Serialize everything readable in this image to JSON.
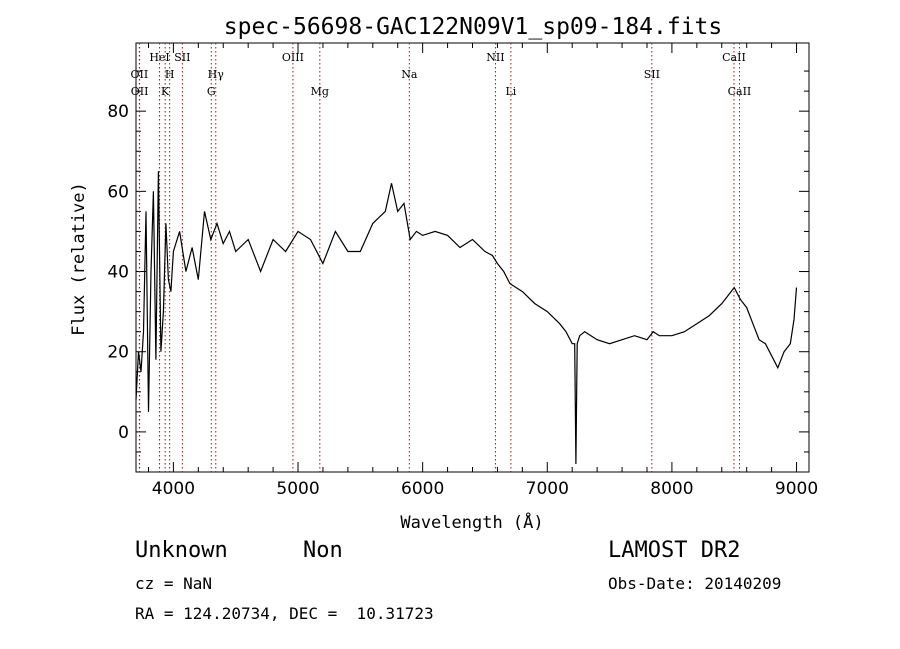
{
  "chart_data": {
    "type": "line",
    "title": "spec-56698-GAC122N09V1_sp09-184.fits",
    "xlabel": "Wavelength (Å)",
    "ylabel": "Flux (relative)",
    "xlim": [
      3700,
      9100
    ],
    "ylim": [
      -10,
      97
    ],
    "xticks": [
      4000,
      5000,
      6000,
      7000,
      8000,
      9000
    ],
    "yticks": [
      0,
      20,
      40,
      60,
      80
    ],
    "grid": false,
    "line_color": "#000000",
    "marker_color": "#cc0000",
    "spectrum": {
      "x": [
        3700,
        3720,
        3740,
        3760,
        3780,
        3800,
        3820,
        3840,
        3860,
        3880,
        3900,
        3920,
        3940,
        3960,
        3980,
        4000,
        4050,
        4100,
        4150,
        4200,
        4250,
        4300,
        4350,
        4400,
        4450,
        4500,
        4600,
        4700,
        4800,
        4900,
        5000,
        5100,
        5200,
        5300,
        5400,
        5500,
        5600,
        5700,
        5750,
        5800,
        5850,
        5900,
        5950,
        6000,
        6100,
        6200,
        6300,
        6400,
        6500,
        6560,
        6600,
        6650,
        6700,
        6800,
        6900,
        7000,
        7100,
        7150,
        7200,
        7220,
        7230,
        7240,
        7260,
        7300,
        7400,
        7500,
        7600,
        7700,
        7800,
        7850,
        7900,
        8000,
        8100,
        8200,
        8300,
        8400,
        8450,
        8500,
        8550,
        8600,
        8650,
        8700,
        8750,
        8800,
        8850,
        8900,
        8950,
        8980,
        9000
      ],
      "y": [
        8,
        20,
        15,
        25,
        55,
        5,
        40,
        60,
        18,
        65,
        20,
        30,
        52,
        38,
        35,
        45,
        50,
        40,
        46,
        38,
        55,
        48,
        52,
        47,
        50,
        45,
        48,
        40,
        48,
        45,
        50,
        48,
        42,
        50,
        45,
        45,
        52,
        55,
        62,
        55,
        57,
        48,
        50,
        49,
        50,
        49,
        46,
        48,
        45,
        44,
        42,
        40,
        37,
        35,
        32,
        30,
        27,
        25,
        22,
        22,
        -8,
        22,
        24,
        25,
        23,
        22,
        23,
        24,
        23,
        25,
        24,
        24,
        25,
        27,
        29,
        32,
        34,
        36,
        33,
        31,
        27,
        23,
        22,
        19,
        16,
        20,
        22,
        28,
        36
      ]
    },
    "lines": [
      {
        "label": "OII",
        "row": 2,
        "x": 3727
      },
      {
        "label": "OII",
        "row": 3,
        "x": 3729
      },
      {
        "label": "HeI",
        "row": 1,
        "x": 3889
      },
      {
        "label": "H",
        "row": 2,
        "x": 3970
      },
      {
        "label": "K",
        "row": 3,
        "x": 3934
      },
      {
        "label": "SII",
        "row": 1,
        "x": 4072
      },
      {
        "label": "Hγ",
        "row": 2,
        "x": 4340
      },
      {
        "label": "G",
        "row": 3,
        "x": 4304
      },
      {
        "label": "OIII",
        "row": 1,
        "x": 4959
      },
      {
        "label": "Mg",
        "row": 3,
        "x": 5175
      },
      {
        "label": "Na",
        "row": 2,
        "x": 5893
      },
      {
        "label": "NII",
        "row": 1,
        "x": 6584
      },
      {
        "label": "Li",
        "row": 3,
        "x": 6708
      },
      {
        "label": "SII",
        "row": 2,
        "x": 7839
      },
      {
        "label": "CaII",
        "row": 1,
        "x": 8498
      },
      {
        "label": "CaII",
        "row": 3,
        "x": 8542
      }
    ]
  },
  "info": {
    "object_type": "Unknown",
    "subclass": "Non",
    "survey": "LAMOST DR2",
    "cz": "cz = NaN",
    "obs_date": "Obs-Date: 20140209",
    "coords": "RA = 124.20734, DEC =  10.31723"
  }
}
